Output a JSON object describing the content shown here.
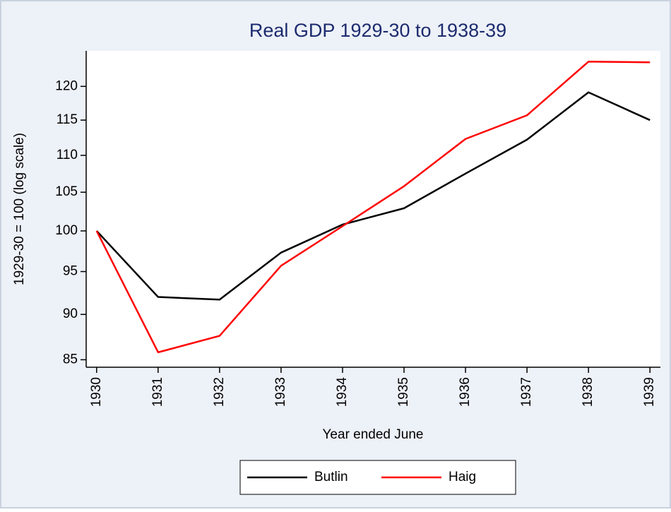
{
  "chart_data": {
    "type": "line",
    "title": "Real GDP 1929-30 to 1938-39",
    "xlabel": "Year ended June",
    "ylabel": "1929-30 = 100 (log scale)",
    "x": [
      1930,
      1931,
      1932,
      1933,
      1934,
      1935,
      1936,
      1937,
      1938,
      1939
    ],
    "series": [
      {
        "name": "Butlin",
        "color": "#000000",
        "values": [
          100,
          92.0,
          91.7,
          97.3,
          100.8,
          102.9,
          107.5,
          112.2,
          119.1,
          115.0
        ]
      },
      {
        "name": "Haig",
        "color": "#ff0000",
        "values": [
          100,
          85.8,
          87.6,
          95.7,
          100.6,
          105.8,
          112.3,
          115.7,
          123.8,
          123.7
        ]
      }
    ],
    "xlim": [
      1929.83,
      1939.17
    ],
    "xticks": [
      1930,
      1931,
      1932,
      1933,
      1934,
      1935,
      1936,
      1937,
      1938,
      1939
    ],
    "ylim": [
      84.2,
      125.5
    ],
    "yticks": [
      85,
      90,
      95,
      100,
      105,
      110,
      115,
      120
    ],
    "log_scale": true,
    "grid": false,
    "legend": "bottom"
  }
}
